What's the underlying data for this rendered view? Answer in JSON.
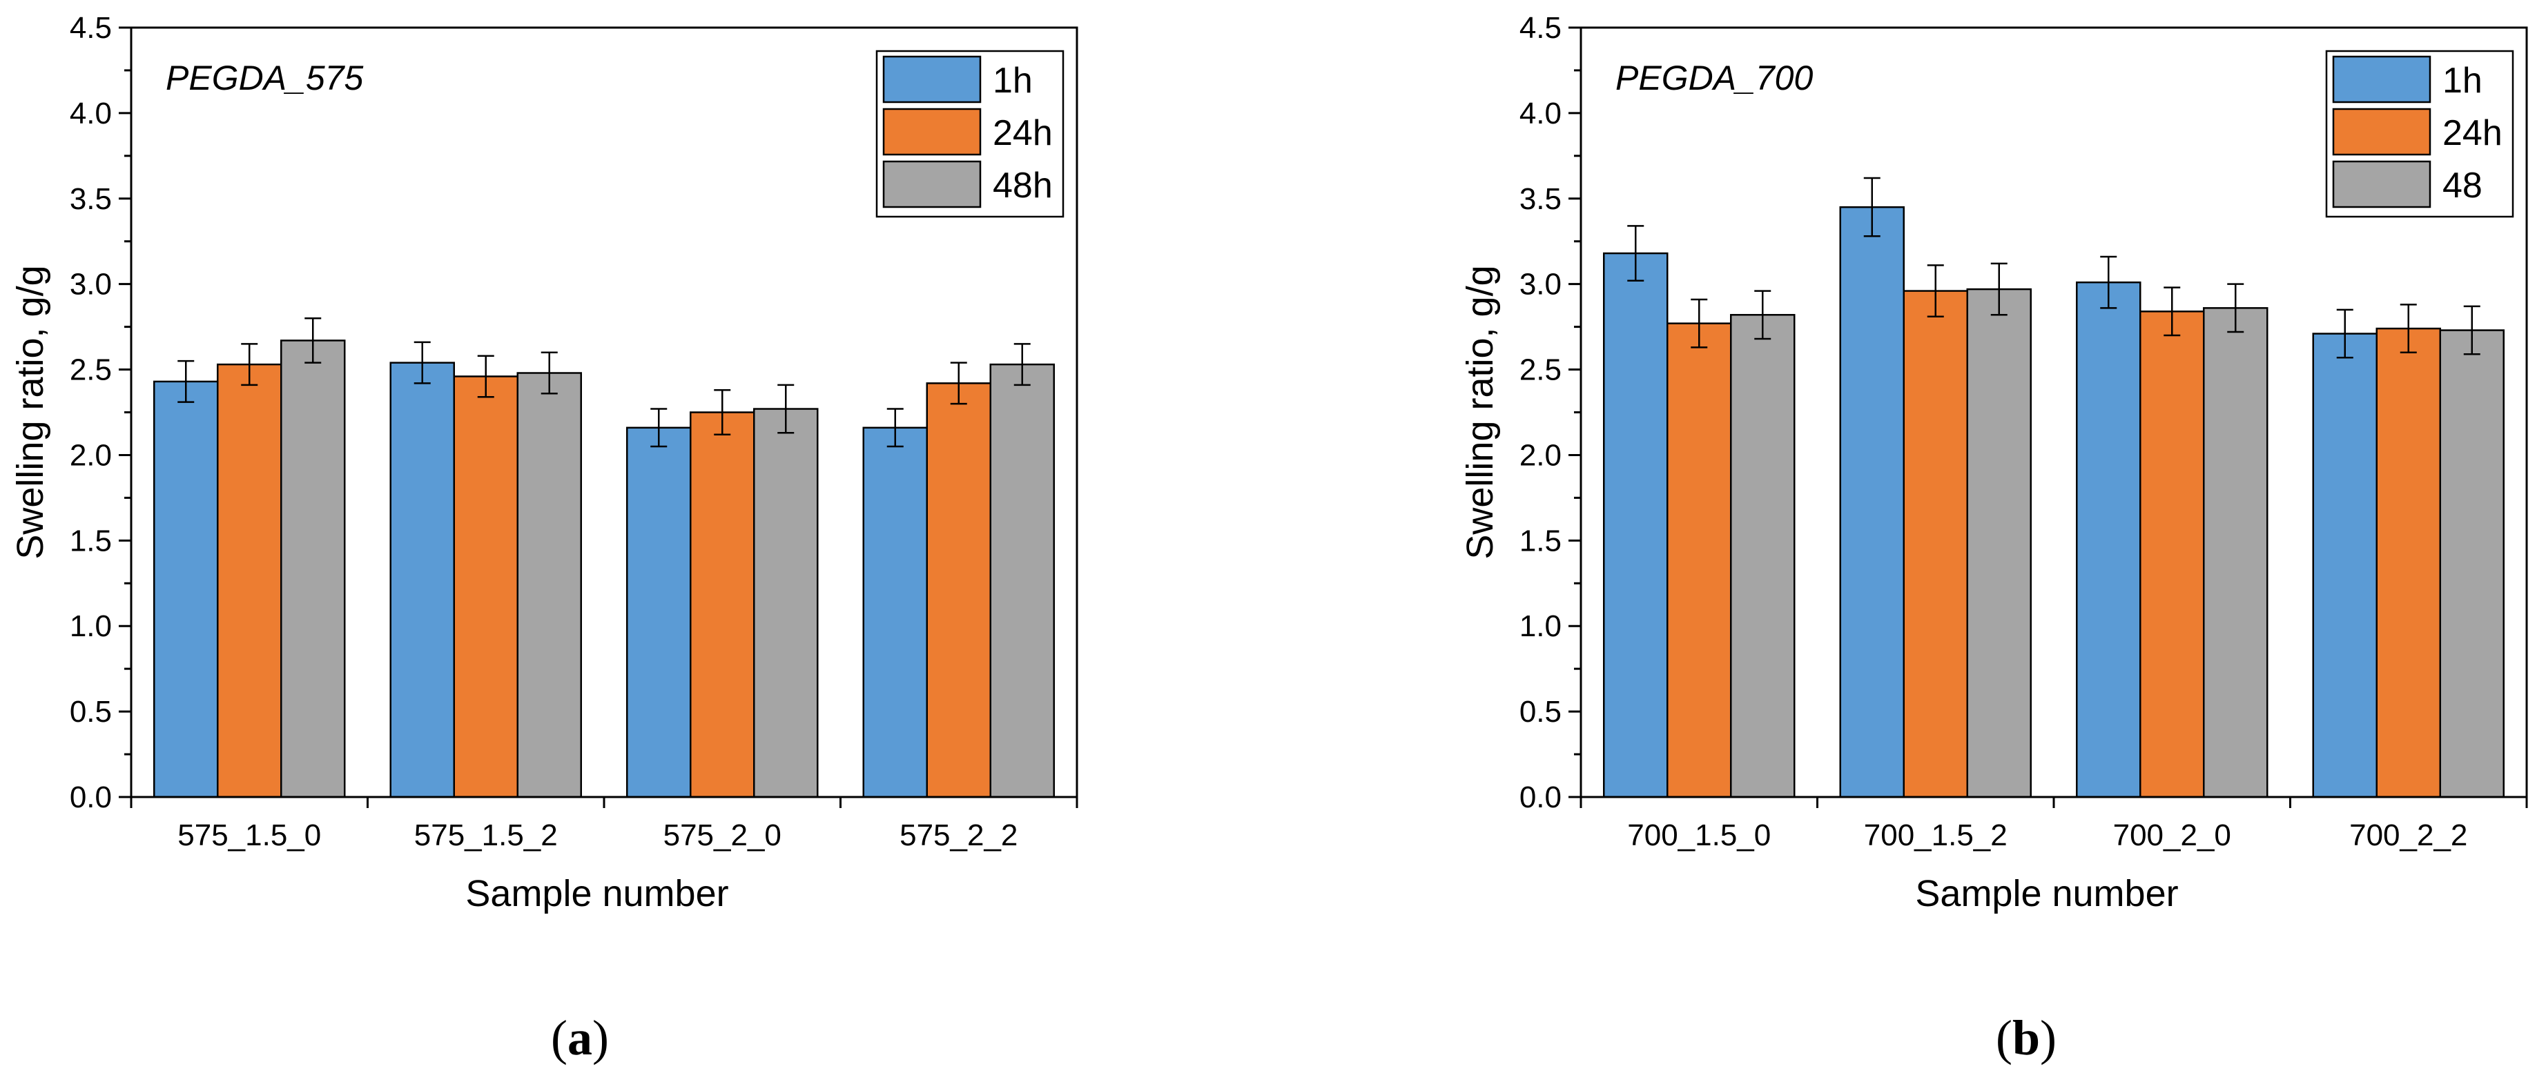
{
  "colors": {
    "1h": "#5b9bd5",
    "24h": "#ed7d31",
    "48h": "#a5a5a5",
    "axis": "#000000",
    "error_bar": "#000000"
  },
  "chart_data": [
    {
      "type": "bar",
      "title": "PEGDA_575",
      "xlabel": "Sample number",
      "ylabel": "Swelling ratio, g/g",
      "ylim": [
        0,
        4.5
      ],
      "yticks": [
        "0.0",
        "0.5",
        "1.0",
        "1.5",
        "2.0",
        "2.5",
        "3.0",
        "3.5",
        "4.0",
        "4.5"
      ],
      "categories": [
        "575_1.5_0",
        "575_1.5_2",
        "575_2_0",
        "575_2_2"
      ],
      "legend_position": "top-right",
      "series": [
        {
          "name": "1h",
          "color_key": "1h",
          "values": [
            2.43,
            2.54,
            2.16,
            2.16
          ],
          "errors": [
            0.12,
            0.12,
            0.11,
            0.11
          ]
        },
        {
          "name": "24h",
          "color_key": "24h",
          "values": [
            2.53,
            2.46,
            2.25,
            2.42
          ],
          "errors": [
            0.12,
            0.12,
            0.13,
            0.12
          ]
        },
        {
          "name": "48h",
          "color_key": "48h",
          "values": [
            2.67,
            2.48,
            2.27,
            2.53
          ],
          "errors": [
            0.13,
            0.12,
            0.14,
            0.12
          ]
        }
      ],
      "panel_label": "a"
    },
    {
      "type": "bar",
      "title": "PEGDA_700",
      "xlabel": "Sample number",
      "ylabel": "Swelling ratio, g/g",
      "ylim": [
        0,
        4.5
      ],
      "yticks": [
        "0.0",
        "0.5",
        "1.0",
        "1.5",
        "2.0",
        "2.5",
        "3.0",
        "3.5",
        "4.0",
        "4.5"
      ],
      "categories": [
        "700_1.5_0",
        "700_1.5_2",
        "700_2_0",
        "700_2_2"
      ],
      "legend_position": "top-right",
      "series": [
        {
          "name": "1h",
          "color_key": "1h",
          "values": [
            3.18,
            3.45,
            3.01,
            2.71
          ],
          "errors": [
            0.16,
            0.17,
            0.15,
            0.14
          ]
        },
        {
          "name": "24h",
          "color_key": "24h",
          "values": [
            2.77,
            2.96,
            2.84,
            2.74
          ],
          "errors": [
            0.14,
            0.15,
            0.14,
            0.14
          ]
        },
        {
          "name": "48",
          "color_key": "48h",
          "values": [
            2.82,
            2.97,
            2.86,
            2.73
          ],
          "errors": [
            0.14,
            0.15,
            0.14,
            0.14
          ]
        }
      ],
      "panel_label": "b"
    }
  ]
}
